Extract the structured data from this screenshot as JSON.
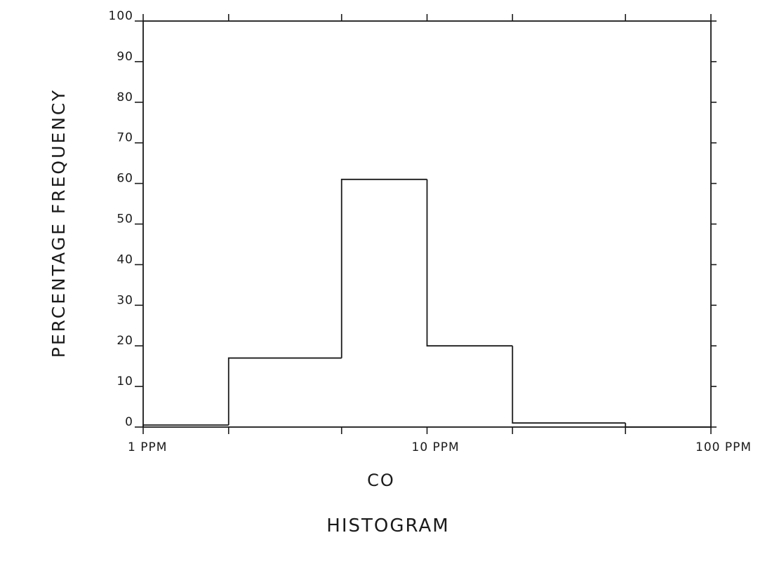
{
  "chart_data": {
    "type": "bar",
    "title": "HISTOGRAM",
    "xlabel": "CO",
    "ylabel": "PERCENTAGE FREQUENCY",
    "x_scale": "log",
    "xlim": [
      1,
      100
    ],
    "ylim": [
      0,
      100
    ],
    "yticks": [
      0,
      10,
      20,
      30,
      40,
      50,
      60,
      70,
      80,
      90,
      100
    ],
    "xtick_labels": [
      {
        "value": 1,
        "label": "1 PPM"
      },
      {
        "value": 10,
        "label": "10 PPM"
      },
      {
        "value": 100,
        "label": "100 PPM"
      }
    ],
    "bins": [
      {
        "x0": 1,
        "x1": 2,
        "value": 0.5
      },
      {
        "x0": 2,
        "x1": 5,
        "value": 17
      },
      {
        "x0": 5,
        "x1": 10,
        "value": 61
      },
      {
        "x0": 10,
        "x1": 20,
        "value": 20
      },
      {
        "x0": 20,
        "x1": 50,
        "value": 1
      },
      {
        "x0": 50,
        "x1": 100,
        "value": 0
      }
    ],
    "grid": false,
    "legend": "none"
  }
}
